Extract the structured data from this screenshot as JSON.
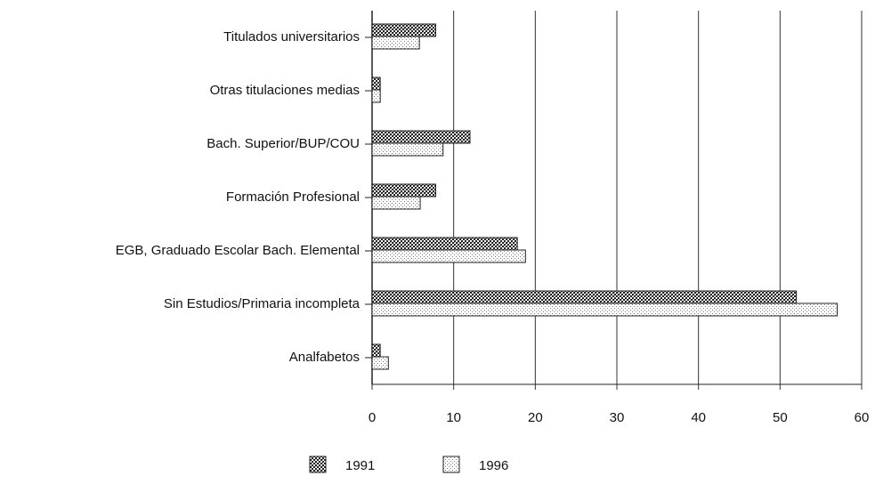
{
  "chart_data": {
    "type": "bar",
    "orientation": "horizontal",
    "categories": [
      "Titulados universitarios",
      "Otras titulaciones medias",
      "Bach. Superior/BUP/COU",
      "Formación Profesional",
      "EGB, Graduado Escolar Bach. Elemental",
      "Sin Estudios/Primaria incompleta",
      "Analfabetos"
    ],
    "series": [
      {
        "name": "1991",
        "color": "#222222",
        "values": [
          7.8,
          1,
          12,
          7.8,
          17.8,
          52,
          1
        ]
      },
      {
        "name": "1996",
        "color": "#777777",
        "values": [
          5.8,
          1,
          8.7,
          5.9,
          18.8,
          57,
          2
        ]
      }
    ],
    "xlim": [
      0,
      60
    ],
    "xticks": [
      0,
      10,
      20,
      30,
      40,
      50,
      60
    ],
    "grid": true,
    "legend": "bottom"
  }
}
